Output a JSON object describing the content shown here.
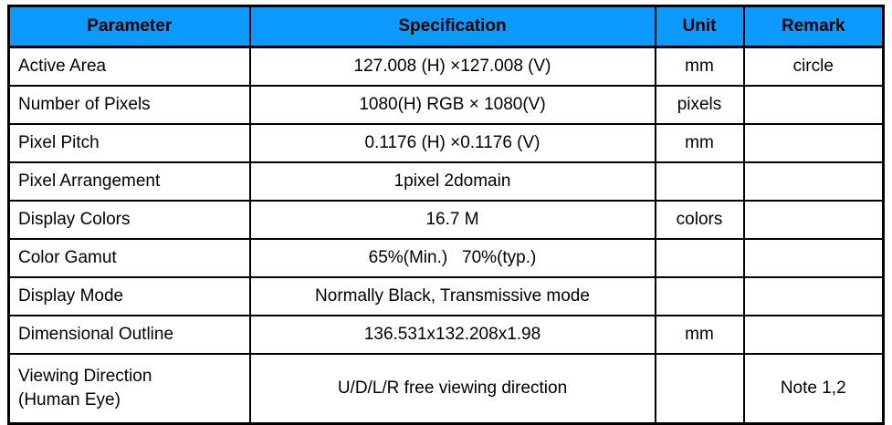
{
  "page": {
    "background_color": "#ffffff",
    "text_color": "#000000"
  },
  "table": {
    "title": "display-specification-table",
    "colors": {
      "header_bg": "#0d9aff",
      "border": "#000000",
      "header_text": "#000000",
      "body_text": "#000000"
    },
    "columns": [
      {
        "key": "parameter",
        "label": "Parameter"
      },
      {
        "key": "specification",
        "label": "Specification"
      },
      {
        "key": "unit",
        "label": "Unit"
      },
      {
        "key": "remark",
        "label": "Remark"
      }
    ],
    "rows": [
      {
        "parameter": "Active Area",
        "specification": "127.008 (H) ×127.008 (V)",
        "unit": "mm",
        "remark": "circle"
      },
      {
        "parameter": "Number of Pixels",
        "specification": "1080(H) RGB × 1080(V)",
        "unit": "pixels",
        "remark": ""
      },
      {
        "parameter": "Pixel Pitch",
        "specification": "0.1176 (H) ×0.1176 (V)",
        "unit": "mm",
        "remark": ""
      },
      {
        "parameter": "Pixel Arrangement",
        "specification": "1pixel 2domain",
        "unit": "",
        "remark": ""
      },
      {
        "parameter": "Display Colors",
        "specification": "16.7 M",
        "unit": "colors",
        "remark": ""
      },
      {
        "parameter": "Color Gamut",
        "specification": "65%(Min.)   70%(typ.)",
        "unit": "",
        "remark": ""
      },
      {
        "parameter": "Display Mode",
        "specification": "Normally Black, Transmissive mode",
        "unit": "",
        "remark": ""
      },
      {
        "parameter": "Dimensional Outline",
        "specification": "136.531x132.208x1.98",
        "unit": "mm",
        "remark": ""
      },
      {
        "parameter": "Viewing Direction\n(Human Eye)",
        "specification": "U/D/L/R free viewing direction",
        "unit": "",
        "remark": "Note 1,2"
      }
    ]
  }
}
